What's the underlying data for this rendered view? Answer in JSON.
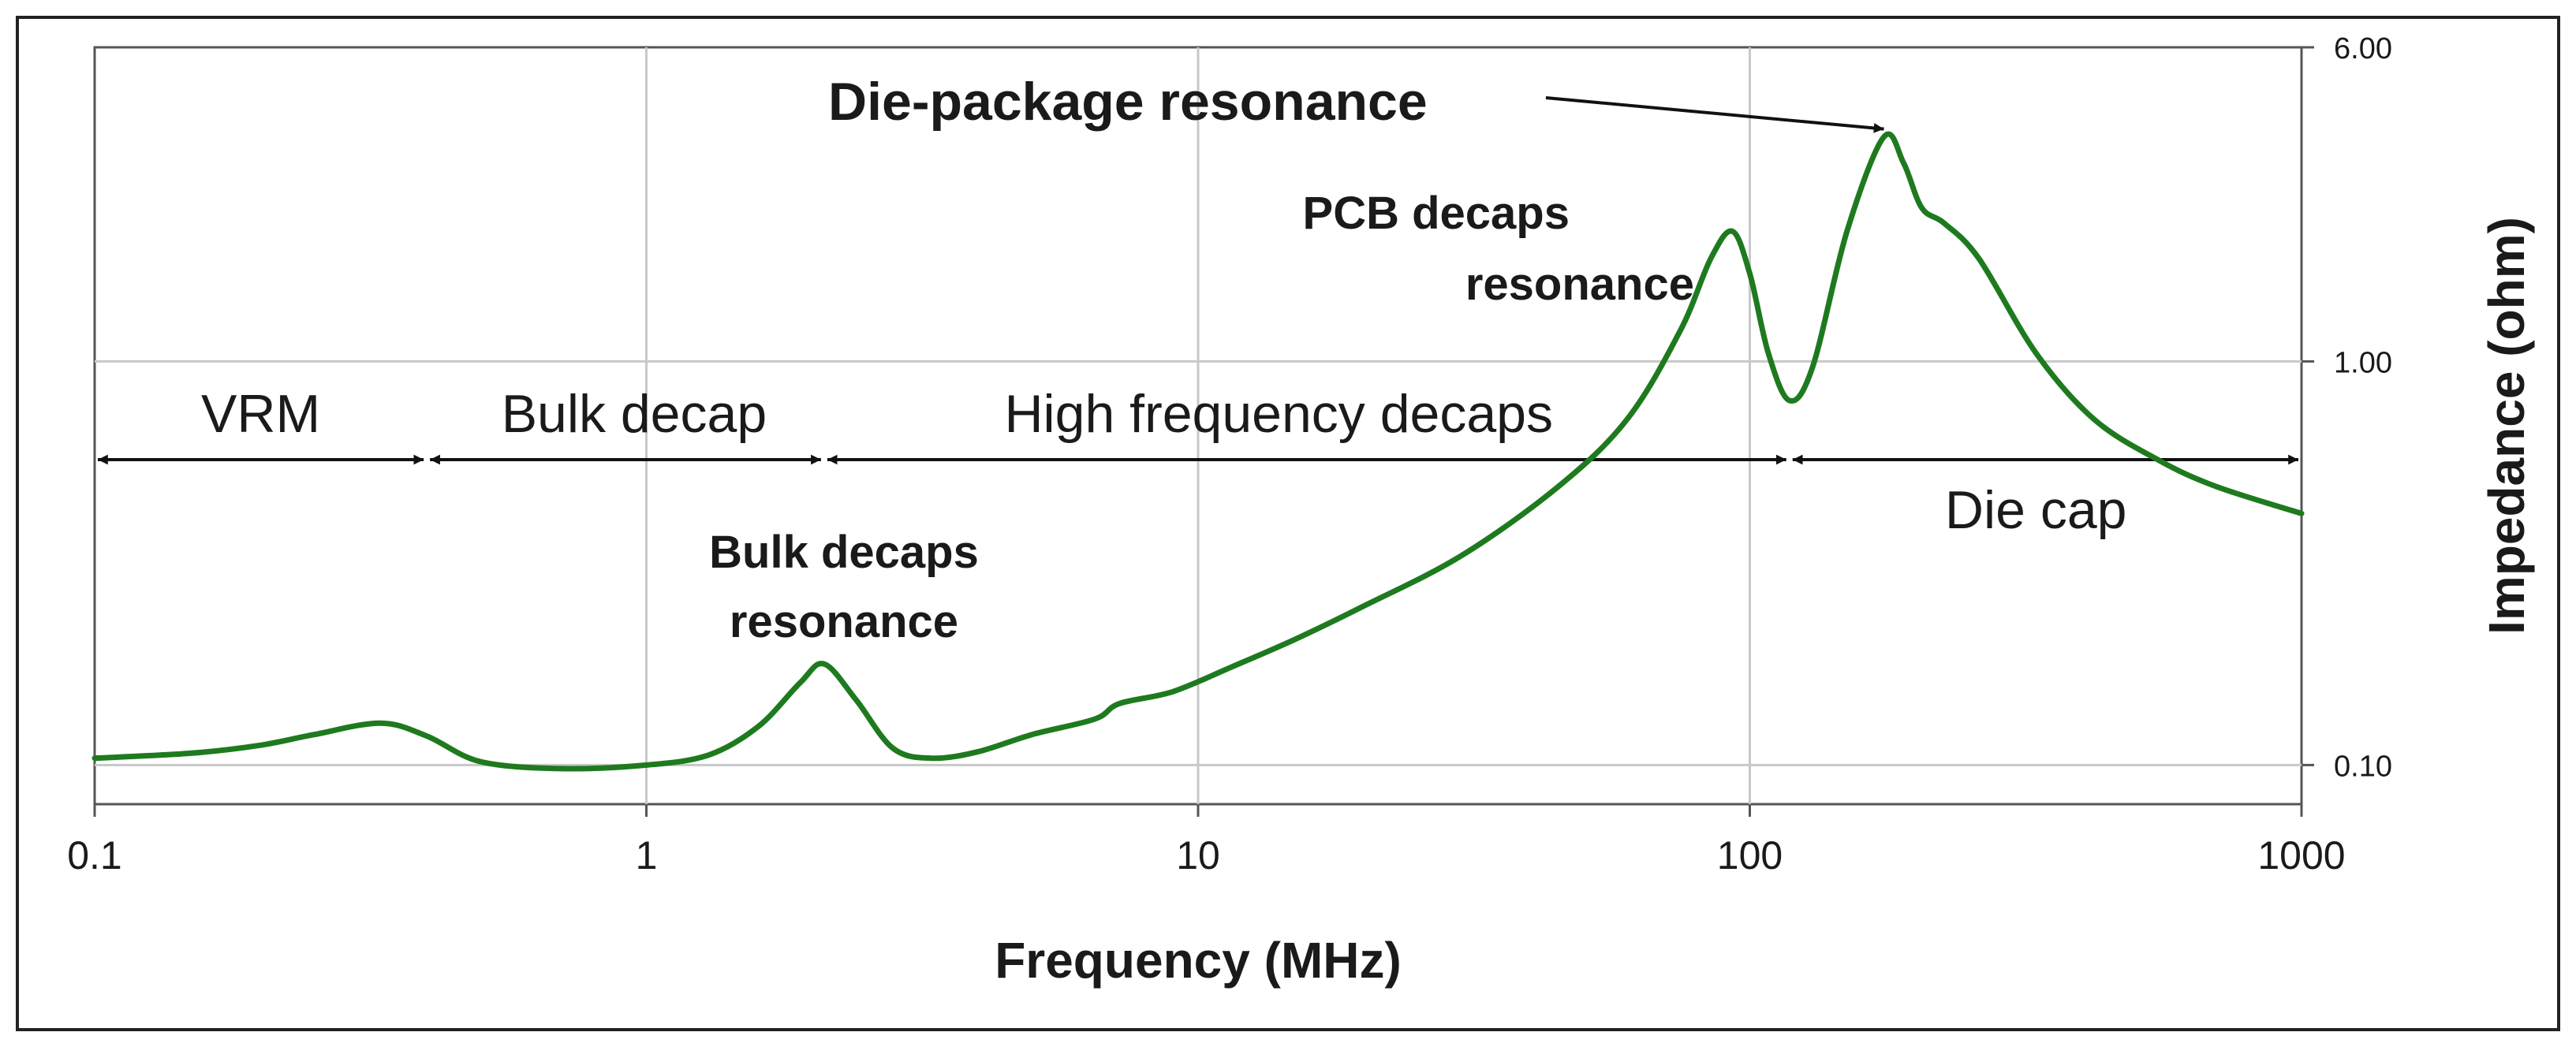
{
  "chart_data": {
    "type": "line",
    "title": "",
    "xlabel": "Frequency (MHz)",
    "ylabel": "Impedance (ohm)",
    "x_scale": "log",
    "y_scale": "log",
    "xlim": [
      0.1,
      1000
    ],
    "ylim": [
      0.08,
      6
    ],
    "grid": true,
    "x_ticks": [
      {
        "value": 0.1,
        "label": "0.1"
      },
      {
        "value": 1,
        "label": "1"
      },
      {
        "value": 10,
        "label": "10"
      },
      {
        "value": 100,
        "label": "100"
      },
      {
        "value": 1000,
        "label": "1000"
      }
    ],
    "y_ticks": [
      {
        "value": 6,
        "label": "6.00"
      },
      {
        "value": 1,
        "label": "1.00"
      },
      {
        "value": 0.1,
        "label": "0.10"
      }
    ],
    "series": [
      {
        "name": "Impedance",
        "color": "#1e7a1e",
        "points": [
          [
            0.1,
            0.104
          ],
          [
            0.15,
            0.107
          ],
          [
            0.2,
            0.112
          ],
          [
            0.25,
            0.119
          ],
          [
            0.33,
            0.127
          ],
          [
            0.4,
            0.118
          ],
          [
            0.5,
            0.102
          ],
          [
            0.7,
            0.098
          ],
          [
            1.0,
            0.1
          ],
          [
            1.3,
            0.106
          ],
          [
            1.6,
            0.125
          ],
          [
            1.9,
            0.16
          ],
          [
            2.1,
            0.178
          ],
          [
            2.4,
            0.145
          ],
          [
            2.8,
            0.11
          ],
          [
            3.3,
            0.104
          ],
          [
            4.0,
            0.108
          ],
          [
            5.0,
            0.119
          ],
          [
            6.5,
            0.13
          ],
          [
            7.2,
            0.142
          ],
          [
            9.0,
            0.152
          ],
          [
            11.5,
            0.175
          ],
          [
            15.0,
            0.205
          ],
          [
            20.0,
            0.248
          ],
          [
            30.0,
            0.33
          ],
          [
            45.0,
            0.49
          ],
          [
            60.0,
            0.72
          ],
          [
            75.0,
            1.2
          ],
          [
            85.0,
            1.8
          ],
          [
            93.0,
            2.1
          ],
          [
            100.0,
            1.65
          ],
          [
            108.0,
            1.05
          ],
          [
            118.0,
            0.8
          ],
          [
            130.0,
            0.97
          ],
          [
            150.0,
            2.1
          ],
          [
            175.0,
            3.6
          ],
          [
            190.0,
            3.1
          ],
          [
            205.0,
            2.4
          ],
          [
            225.0,
            2.2
          ],
          [
            260.0,
            1.8
          ],
          [
            330.0,
            1.05
          ],
          [
            420.0,
            0.72
          ],
          [
            550.0,
            0.57
          ],
          [
            700.0,
            0.49
          ],
          [
            1000.0,
            0.42
          ]
        ]
      }
    ],
    "regions": [
      {
        "label": "VRM",
        "from": 0.1,
        "to": 0.4,
        "label_at": 0.2
      },
      {
        "label": "Bulk decap",
        "from": 0.4,
        "to": 2.1,
        "label_at": 0.95
      },
      {
        "label": "High frequency decaps",
        "from": 2.1,
        "to": 118,
        "label_at": 14
      },
      {
        "label": "Die cap",
        "from": 118,
        "to": 1000,
        "label_at": 330
      }
    ],
    "annotations": [
      {
        "lines": [
          "Bulk decaps",
          "resonance"
        ]
      },
      {
        "lines": [
          "PCB decaps",
          "resonance"
        ]
      },
      {
        "lines": [
          "Die-package resonance"
        ],
        "points_to": [
          175,
          3.6
        ]
      }
    ]
  }
}
